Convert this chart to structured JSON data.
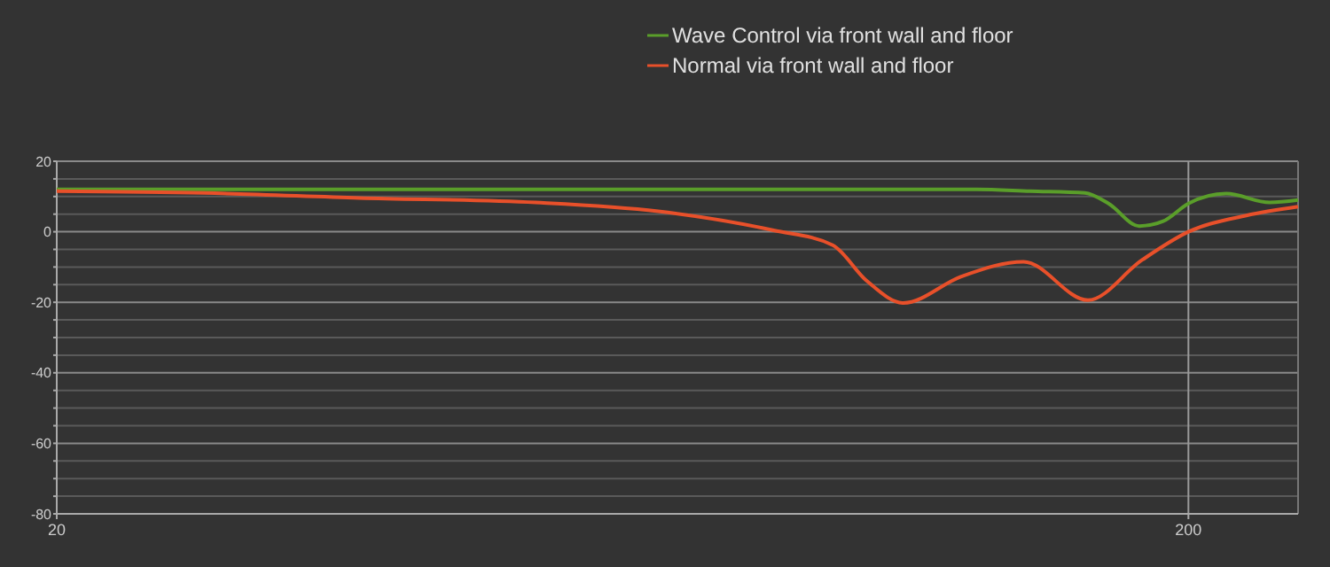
{
  "chart_data": {
    "type": "line",
    "xlim": [
      20,
      250
    ],
    "xticks": [
      20,
      200
    ],
    "ylim": [
      -80,
      20
    ],
    "yticks": [
      {
        "value": -80,
        "label": "-80"
      },
      {
        "value": -75,
        "label": null
      },
      {
        "value": -70,
        "label": null
      },
      {
        "value": -65,
        "label": null
      },
      {
        "value": -60,
        "label": "-60"
      },
      {
        "value": -55,
        "label": null
      },
      {
        "value": -50,
        "label": null
      },
      {
        "value": -45,
        "label": null
      },
      {
        "value": -40,
        "label": "-40"
      },
      {
        "value": -35,
        "label": null
      },
      {
        "value": -30,
        "label": null
      },
      {
        "value": -25,
        "label": null
      },
      {
        "value": -20,
        "label": "-20"
      },
      {
        "value": -15,
        "label": null
      },
      {
        "value": -10,
        "label": null
      },
      {
        "value": -5,
        "label": null
      },
      {
        "value": 0,
        "label": "0"
      },
      {
        "value": 5,
        "label": null
      },
      {
        "value": 10,
        "label": null
      },
      {
        "value": 15,
        "label": null
      },
      {
        "value": 20,
        "label": "20"
      }
    ],
    "log": "x",
    "grid": "y",
    "legend": "top",
    "ref_lines": [
      {
        "axis": "x",
        "value": 200,
        "color": "#9a9a9a"
      }
    ],
    "series": [
      {
        "name": "Wave Control via front wall and floor",
        "color": "#5a9e2a",
        "x": [
          20,
          50,
          100,
          130,
          145,
          162,
          170,
          181,
          190,
          200,
          216,
          236,
          250
        ],
        "values": [
          12,
          12,
          12,
          12,
          11.5,
          11,
          8,
          1.6,
          3,
          8,
          10.8,
          8.3,
          9
        ]
      },
      {
        "name": "Normal via front wall and floor",
        "color": "#e8502a",
        "x": [
          20,
          27,
          37,
          53,
          68,
          86,
          97,
          104,
          112,
          126,
          143,
          163,
          182,
          200,
          225,
          250
        ],
        "values": [
          11.5,
          11,
          9.6,
          8.3,
          5.8,
          0.4,
          -3.8,
          -14,
          -20.2,
          -12.7,
          -8.5,
          -19.4,
          -8,
          0,
          4.6,
          7.1
        ]
      }
    ]
  }
}
